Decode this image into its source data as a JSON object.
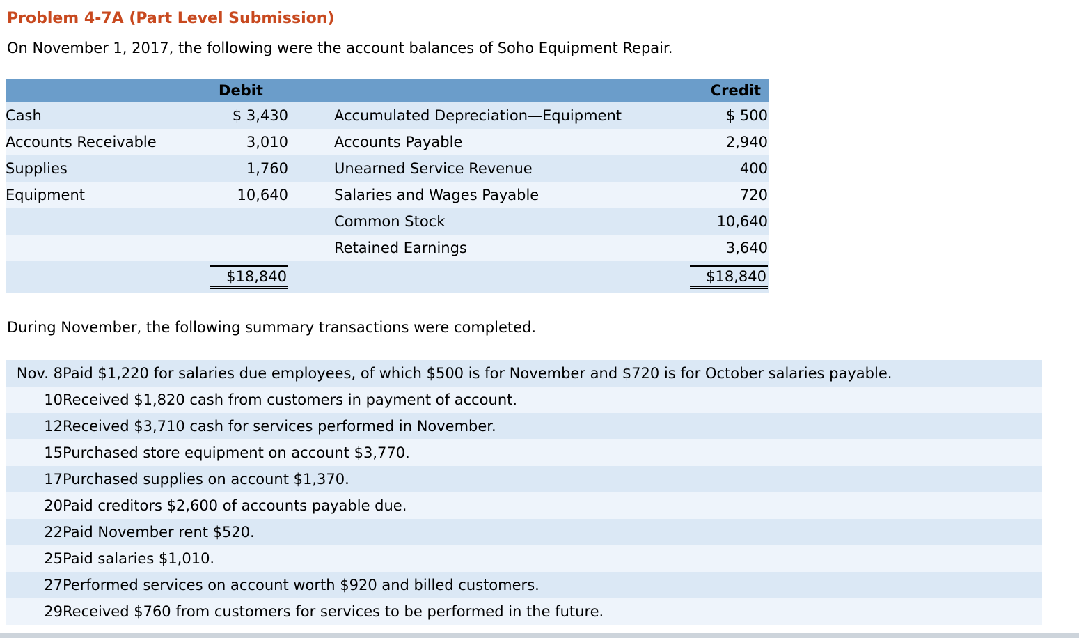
{
  "colors": {
    "title": "#c8491f",
    "table_header_bg": "#6b9dca",
    "row_dark": "#dbe8f5",
    "row_light": "#eef4fb",
    "bottom_bar": "#cdd4db",
    "text": "#000000"
  },
  "header": {
    "title": "Problem 4-7A (Part Level Submission)",
    "intro": "On November 1, 2017, the following were the account balances of Soho Equipment Repair."
  },
  "balance_table": {
    "debit_header": "Debit",
    "credit_header": "Credit",
    "rows": [
      {
        "debit_account": "Cash",
        "debit": "$ 3,430",
        "credit_account": "Accumulated Depreciation—Equipment",
        "credit": "$ 500"
      },
      {
        "debit_account": "Accounts Receivable",
        "debit": "3,010",
        "credit_account": "Accounts Payable",
        "credit": "2,940"
      },
      {
        "debit_account": "Supplies",
        "debit": "1,760",
        "credit_account": "Unearned Service Revenue",
        "credit": "400"
      },
      {
        "debit_account": "Equipment",
        "debit": "10,640",
        "credit_account": "Salaries and Wages Payable",
        "credit": "720"
      },
      {
        "debit_account": "",
        "debit": "",
        "credit_account": "Common Stock",
        "credit": "10,640"
      },
      {
        "debit_account": "",
        "debit": "",
        "credit_account": "Retained Earnings",
        "credit": "3,640"
      }
    ],
    "totals": {
      "debit": "$18,840",
      "credit": "$18,840"
    }
  },
  "transactions": {
    "intro": "During November, the following summary transactions were completed.",
    "rows": [
      {
        "date": "Nov. 8",
        "description": "Paid $1,220 for salaries due employees, of which $500 is for November and $720 is for October salaries payable."
      },
      {
        "date": "10",
        "description": "Received $1,820 cash from customers in payment of account."
      },
      {
        "date": "12",
        "description": "Received $3,710 cash for services performed in November."
      },
      {
        "date": "15",
        "description": "Purchased store equipment on account $3,770."
      },
      {
        "date": "17",
        "description": "Purchased supplies on account $1,370."
      },
      {
        "date": "20",
        "description": "Paid creditors $2,600 of accounts payable due."
      },
      {
        "date": "22",
        "description": "Paid November rent $520."
      },
      {
        "date": "25",
        "description": "Paid salaries $1,010."
      },
      {
        "date": "27",
        "description": "Performed services on account worth $920 and billed customers."
      },
      {
        "date": "29",
        "description": "Received $760 from customers for services to be performed in the future."
      }
    ]
  }
}
